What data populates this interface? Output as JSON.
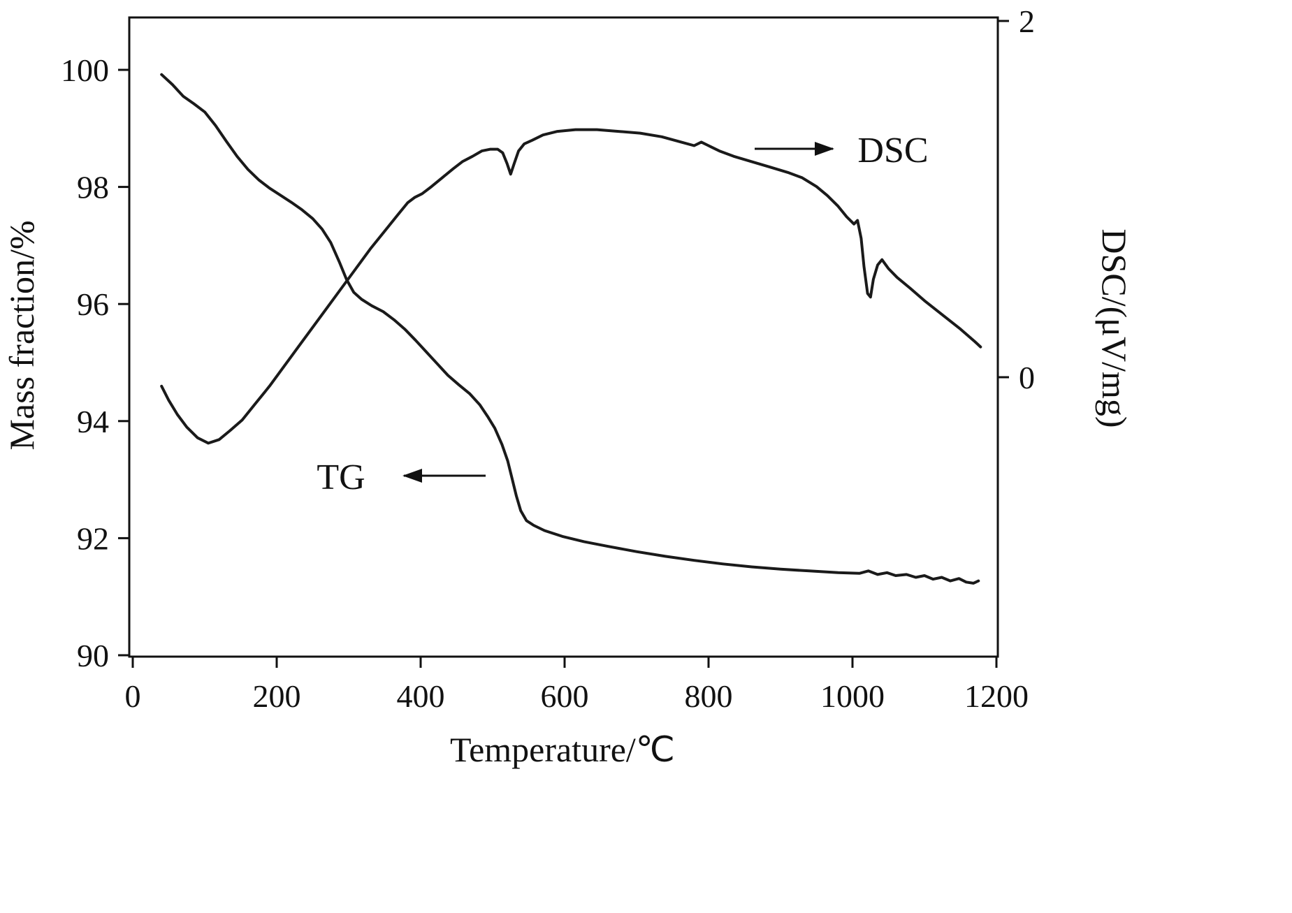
{
  "chart_data": {
    "type": "line",
    "title": "",
    "xlabel": "Temperature/℃",
    "ylabel_left": "Mass fraction/%",
    "ylabel_right": "DSC/(μV/mg)",
    "xlim": [
      0,
      1200
    ],
    "xticks": [
      0,
      200,
      400,
      600,
      800,
      1000,
      1200
    ],
    "ylim_left": [
      90,
      100
    ],
    "yticks_left": [
      90,
      92,
      94,
      96,
      98,
      100
    ],
    "ylim_right": [
      -0.5,
      2
    ],
    "yticks_right": [
      0,
      2
    ],
    "grid": false,
    "legend_position": "none",
    "line_color": "#1a1a1a",
    "annotations": [
      {
        "text": "DSC",
        "arrow": "right"
      },
      {
        "text": "TG",
        "arrow": "left"
      }
    ],
    "series": [
      {
        "name": "TG",
        "axis": "left",
        "units": "%",
        "points": [
          [
            40,
            99.92
          ],
          [
            55,
            99.75
          ],
          [
            70,
            99.55
          ],
          [
            85,
            99.42
          ],
          [
            100,
            99.28
          ],
          [
            115,
            99.05
          ],
          [
            130,
            98.78
          ],
          [
            145,
            98.52
          ],
          [
            160,
            98.3
          ],
          [
            175,
            98.12
          ],
          [
            190,
            97.98
          ],
          [
            205,
            97.86
          ],
          [
            220,
            97.74
          ],
          [
            235,
            97.61
          ],
          [
            250,
            97.46
          ],
          [
            263,
            97.28
          ],
          [
            275,
            97.05
          ],
          [
            287,
            96.72
          ],
          [
            297,
            96.42
          ],
          [
            307,
            96.2
          ],
          [
            318,
            96.08
          ],
          [
            332,
            95.97
          ],
          [
            348,
            95.87
          ],
          [
            363,
            95.73
          ],
          [
            378,
            95.57
          ],
          [
            393,
            95.38
          ],
          [
            408,
            95.18
          ],
          [
            423,
            94.98
          ],
          [
            438,
            94.78
          ],
          [
            453,
            94.62
          ],
          [
            468,
            94.47
          ],
          [
            482,
            94.28
          ],
          [
            493,
            94.08
          ],
          [
            503,
            93.88
          ],
          [
            513,
            93.6
          ],
          [
            521,
            93.32
          ],
          [
            527,
            93.02
          ],
          [
            533,
            92.72
          ],
          [
            539,
            92.47
          ],
          [
            547,
            92.3
          ],
          [
            557,
            92.22
          ],
          [
            572,
            92.13
          ],
          [
            597,
            92.03
          ],
          [
            627,
            91.94
          ],
          [
            660,
            91.86
          ],
          [
            700,
            91.77
          ],
          [
            740,
            91.69
          ],
          [
            780,
            91.62
          ],
          [
            820,
            91.56
          ],
          [
            860,
            91.51
          ],
          [
            900,
            91.47
          ],
          [
            940,
            91.44
          ],
          [
            980,
            91.41
          ],
          [
            1010,
            91.4
          ],
          [
            1022,
            91.44
          ],
          [
            1035,
            91.38
          ],
          [
            1048,
            91.41
          ],
          [
            1060,
            91.36
          ],
          [
            1075,
            91.38
          ],
          [
            1088,
            91.33
          ],
          [
            1100,
            91.36
          ],
          [
            1112,
            91.3
          ],
          [
            1124,
            91.33
          ],
          [
            1136,
            91.27
          ],
          [
            1148,
            91.31
          ],
          [
            1158,
            91.25
          ],
          [
            1168,
            91.23
          ],
          [
            1175,
            91.27
          ]
        ]
      },
      {
        "name": "DSC",
        "axis": "right",
        "units": "μV/mg",
        "points": [
          [
            40,
            -0.05
          ],
          [
            50,
            -0.13
          ],
          [
            62,
            -0.21
          ],
          [
            75,
            -0.28
          ],
          [
            90,
            -0.34
          ],
          [
            105,
            -0.37
          ],
          [
            120,
            -0.35
          ],
          [
            135,
            -0.3
          ],
          [
            152,
            -0.24
          ],
          [
            170,
            -0.15
          ],
          [
            190,
            -0.05
          ],
          [
            210,
            0.06
          ],
          [
            230,
            0.17
          ],
          [
            250,
            0.28
          ],
          [
            270,
            0.39
          ],
          [
            290,
            0.5
          ],
          [
            310,
            0.61
          ],
          [
            330,
            0.72
          ],
          [
            350,
            0.82
          ],
          [
            368,
            0.91
          ],
          [
            382,
            0.98
          ],
          [
            392,
            1.01
          ],
          [
            402,
            1.03
          ],
          [
            415,
            1.07
          ],
          [
            430,
            1.12
          ],
          [
            445,
            1.17
          ],
          [
            458,
            1.21
          ],
          [
            472,
            1.24
          ],
          [
            485,
            1.27
          ],
          [
            497,
            1.28
          ],
          [
            507,
            1.28
          ],
          [
            514,
            1.26
          ],
          [
            520,
            1.2
          ],
          [
            525,
            1.14
          ],
          [
            530,
            1.2
          ],
          [
            536,
            1.27
          ],
          [
            544,
            1.31
          ],
          [
            555,
            1.33
          ],
          [
            570,
            1.36
          ],
          [
            590,
            1.38
          ],
          [
            615,
            1.39
          ],
          [
            645,
            1.39
          ],
          [
            675,
            1.38
          ],
          [
            705,
            1.37
          ],
          [
            735,
            1.35
          ],
          [
            762,
            1.32
          ],
          [
            780,
            1.3
          ],
          [
            790,
            1.32
          ],
          [
            800,
            1.3
          ],
          [
            815,
            1.27
          ],
          [
            835,
            1.24
          ],
          [
            860,
            1.21
          ],
          [
            885,
            1.18
          ],
          [
            910,
            1.15
          ],
          [
            930,
            1.12
          ],
          [
            950,
            1.07
          ],
          [
            965,
            1.02
          ],
          [
            980,
            0.96
          ],
          [
            992,
            0.9
          ],
          [
            1002,
            0.86
          ],
          [
            1007,
            0.88
          ],
          [
            1012,
            0.78
          ],
          [
            1016,
            0.62
          ],
          [
            1021,
            0.47
          ],
          [
            1025,
            0.45
          ],
          [
            1029,
            0.55
          ],
          [
            1035,
            0.63
          ],
          [
            1041,
            0.66
          ],
          [
            1050,
            0.61
          ],
          [
            1062,
            0.56
          ],
          [
            1080,
            0.5
          ],
          [
            1100,
            0.43
          ],
          [
            1125,
            0.35
          ],
          [
            1150,
            0.27
          ],
          [
            1170,
            0.2
          ],
          [
            1178,
            0.17
          ]
        ]
      }
    ]
  }
}
